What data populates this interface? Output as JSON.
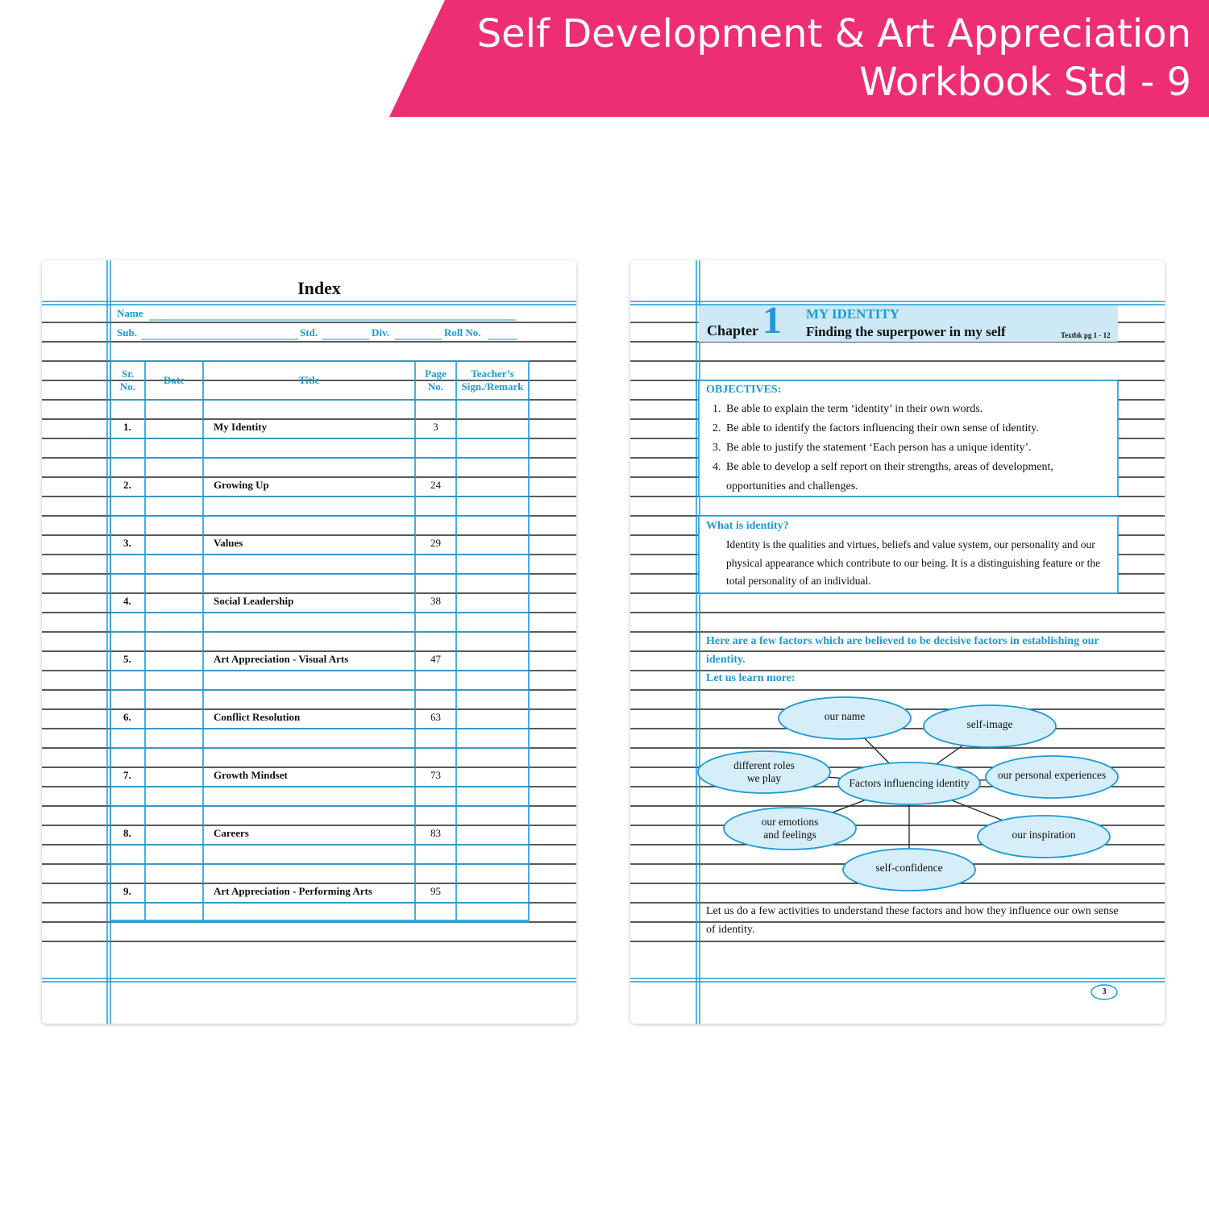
{
  "banner": {
    "lines": [
      "Self Development & Art Appreciation",
      "Workbook Std - 9"
    ]
  },
  "index_page": {
    "title": "Index",
    "fields": {
      "name": "Name",
      "sub": "Sub.",
      "std": "Std.",
      "div": "Div.",
      "roll": "Roll No."
    },
    "table": {
      "headers": [
        "Sr. No.",
        "Date",
        "Title",
        "Page No.",
        "Teacher’s Sign./Remark"
      ],
      "rows": [
        [
          "1.",
          "My Identity",
          3
        ],
        [
          "2.",
          "Growing Up",
          24
        ],
        [
          "3.",
          "Values",
          29
        ],
        [
          "4.",
          "Social Leadership",
          38
        ],
        [
          "5.",
          "Art Appreciation - Visual Arts",
          47
        ],
        [
          "6.",
          "Conflict Resolution",
          63
        ],
        [
          "7.",
          "Growth Mindset",
          73
        ],
        [
          "8.",
          "Careers",
          83
        ],
        [
          "9.",
          "Art Appreciation - Performing Arts",
          95
        ]
      ]
    }
  },
  "chapter_page": {
    "chapter": {
      "label": "Chapter",
      "number": 1,
      "title": "MY IDENTITY",
      "subtitle": "Finding the superpower in my self",
      "reference": "Textbk pg 1 - 12"
    },
    "objectives": {
      "heading": "OBJECTIVES:",
      "items": [
        {
          "number": "1.",
          "text": "Be able to explain the term ‘identity’ in their own words."
        },
        {
          "number": "2.",
          "text": "Be able to identify the factors influencing their own sense of identity."
        },
        {
          "number": "3.",
          "text": "Be able to justify the statement ‘Each person has a unique identity’."
        },
        {
          "number": "4.",
          "text": "Be able to develop a self report on their strengths, areas of development, opportunities and challenges."
        }
      ]
    },
    "identity": {
      "heading": "What is identity?",
      "text": "Identity is the qualities and virtues, beliefs and value system, our personality and our physical appearance which contribute to our being. It is a distinguishing feature or the total personality of an individual."
    },
    "factors_intro": "Here are a few factors which are believed to be decisive factors in establishing our identity.",
    "learn_more": "Let us learn more:",
    "diagram": {
      "center": "Factors influencing identity",
      "nodes": [
        [
          "our name"
        ],
        [
          "self-image"
        ],
        [
          "different roles",
          "we play"
        ],
        [
          "our personal experiences"
        ],
        [
          "our emotions",
          "and feelings"
        ],
        [
          "our inspiration"
        ],
        [
          "self-confidence"
        ]
      ]
    },
    "closing": "Let us do a few activities to understand these factors and how they influence our own sense of identity.",
    "page_number": 3
  }
}
